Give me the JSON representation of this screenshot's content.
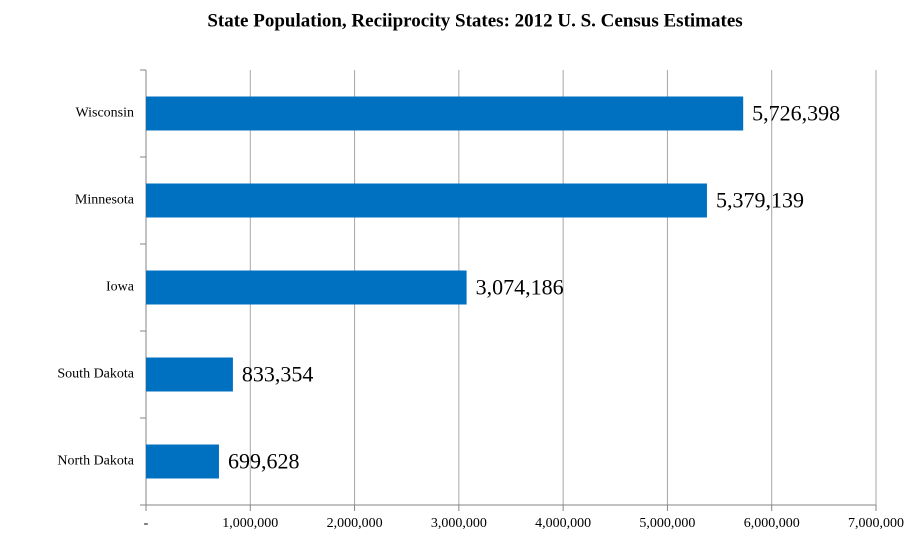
{
  "chart_data": {
    "type": "bar",
    "orientation": "horizontal",
    "title": "State Population, Reciiprocity States: 2012 U. S. Census Estimates",
    "categories": [
      "Wisconsin",
      "Minnesota",
      "Iowa",
      "South Dakota",
      "North Dakota"
    ],
    "values": [
      5726398,
      5379139,
      3074186,
      833354,
      699628
    ],
    "value_labels": [
      "5,726,398",
      "5,379,139",
      "3,074,186",
      "833,354",
      "699,628"
    ],
    "color": "#0070c0",
    "xlim": [
      0,
      7000000
    ],
    "xticks": [
      {
        "value": 0,
        "label": "-"
      },
      {
        "value": 1000000,
        "label": "1,000,000"
      },
      {
        "value": 2000000,
        "label": "2,000,000"
      },
      {
        "value": 3000000,
        "label": "3,000,000"
      },
      {
        "value": 4000000,
        "label": "4,000,000"
      },
      {
        "value": 5000000,
        "label": "5,000,000"
      },
      {
        "value": 6000000,
        "label": "6,000,000"
      },
      {
        "value": 7000000,
        "label": "7,000,000"
      }
    ],
    "grid": true
  }
}
